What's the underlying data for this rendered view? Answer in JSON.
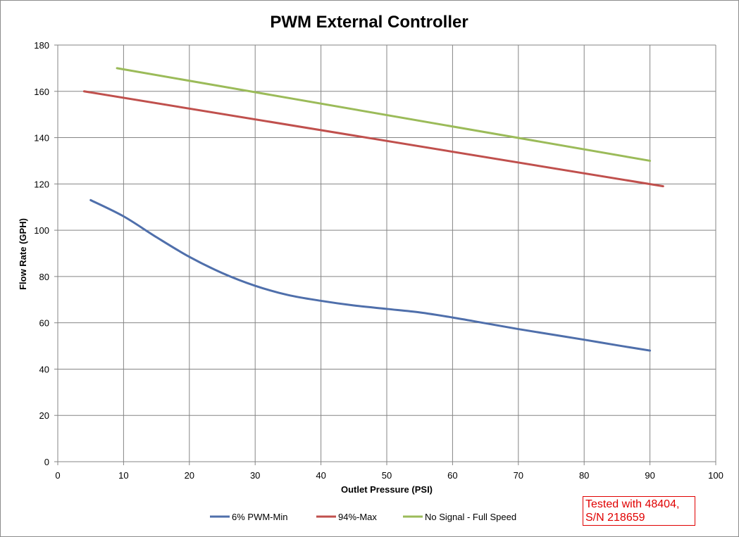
{
  "chart_data": {
    "type": "line",
    "title": "PWM External Controller",
    "xlabel": "Outlet Pressure (PSI)",
    "ylabel": "Flow Rate (GPH)",
    "xlim": [
      0,
      100
    ],
    "ylim": [
      0,
      180
    ],
    "xticks": [
      0,
      10,
      20,
      30,
      40,
      50,
      60,
      70,
      80,
      90,
      100
    ],
    "yticks": [
      0,
      20,
      40,
      60,
      80,
      100,
      120,
      140,
      160,
      180
    ],
    "grid": true,
    "legend_position": "bottom",
    "series": [
      {
        "name": "6% PWM-Min",
        "color": "#4f6fab",
        "points": [
          [
            5,
            113
          ],
          [
            10,
            106
          ],
          [
            15,
            97
          ],
          [
            20,
            88.5
          ],
          [
            25,
            81.5
          ],
          [
            30,
            76
          ],
          [
            35,
            72
          ],
          [
            40,
            69.5
          ],
          [
            45,
            67.5
          ],
          [
            50,
            66
          ],
          [
            55,
            64.5
          ],
          [
            60,
            62.3
          ],
          [
            65,
            59.8
          ],
          [
            70,
            57.3
          ],
          [
            75,
            55
          ],
          [
            80,
            52.7
          ],
          [
            85,
            50.3
          ],
          [
            90,
            48
          ]
        ]
      },
      {
        "name": "94%-Max",
        "color": "#c0504d",
        "points": [
          [
            4,
            160
          ],
          [
            92,
            119
          ]
        ]
      },
      {
        "name": "No Signal - Full Speed",
        "color": "#9bbb59",
        "points": [
          [
            9,
            170
          ],
          [
            90,
            130
          ]
        ]
      }
    ]
  },
  "note": {
    "line1": "Tested with 48404,",
    "line2": "S/N 218659"
  }
}
